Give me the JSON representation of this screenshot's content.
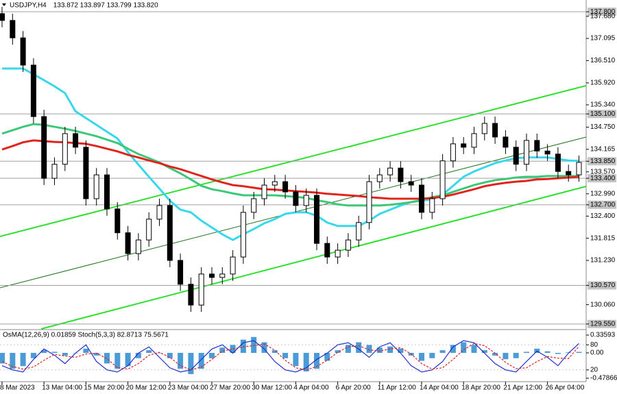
{
  "chart_data": [
    {
      "type": "candlestick",
      "title": "USDJPY,H4",
      "ohlc_text": "133.872 133.897 133.799 133.820",
      "categories": [
        "8 Mar 2023",
        null,
        null,
        null,
        "13 Mar 04:00",
        null,
        null,
        null,
        "15 Mar 20:00",
        null,
        null,
        null,
        "20 Mar 12:00",
        null,
        null,
        null,
        "23 Mar 04:00",
        null,
        null,
        null,
        "27 Mar 20:00",
        null,
        null,
        null,
        "30 Mar 12:00",
        null,
        null,
        null,
        "4 Apr 04:00",
        null,
        null,
        null,
        "6 Apr 20:00",
        null,
        null,
        null,
        "11 Apr 12:00",
        null,
        null,
        null,
        "14 Apr 04:00",
        null,
        null,
        null,
        "18 Apr 20:00",
        null,
        null,
        null,
        "21 Apr 12:00",
        null,
        null,
        null,
        "26 Apr 04:00",
        null,
        null,
        null
      ],
      "open": [
        137.75,
        137.57,
        137.11,
        136.39,
        135.03,
        133.4,
        133.77,
        134.58,
        134.22,
        132.86,
        133.49,
        132.59,
        131.96,
        131.41,
        131.77,
        132.32,
        132.68,
        131.23,
        130.6,
        130.05,
        130.87,
        130.78,
        130.87,
        131.32,
        132.5,
        132.86,
        133.22,
        133.31,
        133.04,
        132.68,
        132.95,
        131.68,
        131.32,
        131.5,
        131.77,
        132.23,
        133.31,
        133.49,
        133.67,
        133.31,
        133.22,
        132.5,
        132.86,
        133.86,
        134.31,
        134.22,
        134.58,
        134.85,
        134.49,
        134.22,
        133.77,
        134.4,
        134.12,
        134.04,
        133.58,
        133.49
      ],
      "high": [
        137.93,
        137.75,
        137.29,
        136.57,
        135.21,
        133.95,
        134.76,
        134.76,
        134.4,
        133.67,
        133.67,
        132.77,
        132.14,
        131.95,
        132.5,
        132.86,
        132.86,
        131.41,
        130.78,
        131.05,
        131.05,
        131.05,
        131.5,
        132.68,
        133.04,
        133.4,
        133.49,
        133.49,
        133.22,
        133.13,
        133.13,
        131.86,
        131.68,
        131.95,
        132.41,
        133.49,
        133.67,
        133.85,
        133.85,
        133.49,
        133.4,
        133.04,
        134.04,
        134.49,
        134.49,
        134.76,
        135.03,
        135.03,
        134.67,
        134.4,
        134.58,
        134.58,
        134.3,
        134.22,
        133.76,
        134.0
      ],
      "low": [
        137.39,
        136.93,
        136.21,
        134.85,
        133.22,
        133.22,
        133.59,
        134.04,
        132.68,
        132.68,
        132.41,
        131.78,
        131.23,
        131.23,
        131.59,
        132.14,
        131.05,
        130.42,
        129.87,
        129.87,
        130.6,
        130.6,
        130.69,
        131.14,
        132.32,
        132.68,
        133.04,
        132.86,
        132.5,
        132.5,
        131.5,
        131.14,
        131.14,
        131.32,
        131.59,
        132.05,
        133.13,
        133.31,
        133.13,
        133.04,
        132.32,
        132.32,
        132.68,
        133.68,
        134.04,
        134.04,
        134.4,
        134.31,
        134.04,
        133.59,
        133.59,
        133.94,
        133.86,
        133.4,
        133.31,
        133.31
      ],
      "close": [
        137.57,
        137.11,
        136.39,
        135.03,
        133.4,
        133.77,
        134.58,
        134.22,
        132.86,
        133.49,
        132.59,
        131.96,
        131.41,
        131.77,
        132.32,
        132.68,
        131.23,
        130.6,
        130.05,
        130.87,
        130.78,
        130.87,
        131.32,
        132.5,
        132.86,
        133.22,
        133.31,
        133.04,
        132.68,
        132.95,
        131.68,
        131.32,
        131.5,
        131.77,
        132.23,
        133.31,
        133.49,
        133.67,
        133.31,
        133.22,
        132.5,
        132.86,
        133.86,
        134.31,
        134.22,
        134.58,
        134.85,
        134.49,
        134.22,
        133.77,
        134.4,
        134.12,
        134.04,
        133.58,
        133.49,
        133.82
      ],
      "bull_color": "#ffffff",
      "bear_color": "#000000",
      "overlays": [
        {
          "color": "#38d8ec",
          "values": [
            136.3,
            136.3,
            136.3,
            136.15,
            135.99,
            135.83,
            135.65,
            135.17,
            134.99,
            134.81,
            134.63,
            134.45,
            134.09,
            133.76,
            133.44,
            133.13,
            132.81,
            132.57,
            132.5,
            132.28,
            132.1,
            131.92,
            131.77,
            131.92,
            132.06,
            132.21,
            132.32,
            132.46,
            132.5,
            132.5,
            132.41,
            132.23,
            132.14,
            132.14,
            132.14,
            132.28,
            132.46,
            132.57,
            132.68,
            132.77,
            132.81,
            132.84,
            132.97,
            133.2,
            133.44,
            133.58,
            133.69,
            133.8,
            133.87,
            133.93,
            133.95,
            133.95,
            133.95,
            133.91,
            133.87,
            133.86
          ]
        },
        {
          "color": "#3cc878",
          "values": [
            134.58,
            134.67,
            134.76,
            134.83,
            134.81,
            134.76,
            134.71,
            134.65,
            134.58,
            134.51,
            134.42,
            134.33,
            134.18,
            134.04,
            133.93,
            133.82,
            133.67,
            133.53,
            133.37,
            133.2,
            133.11,
            133.06,
            133.0,
            132.95,
            132.95,
            132.95,
            132.95,
            132.93,
            132.91,
            132.88,
            132.82,
            132.77,
            132.71,
            132.68,
            132.68,
            132.68,
            132.68,
            132.7,
            132.73,
            132.77,
            132.82,
            132.9,
            132.95,
            133.04,
            133.13,
            133.22,
            133.29,
            133.35,
            133.38,
            133.42,
            133.44,
            133.44,
            133.46,
            133.46,
            133.46,
            133.46
          ]
        },
        {
          "color": "#e0241c",
          "values": [
            134.16,
            134.25,
            134.35,
            134.4,
            134.38,
            134.36,
            134.35,
            134.33,
            134.31,
            134.25,
            134.18,
            134.11,
            134.02,
            133.95,
            133.87,
            133.8,
            133.71,
            133.64,
            133.55,
            133.46,
            133.37,
            133.29,
            133.22,
            133.19,
            133.15,
            133.11,
            133.1,
            133.08,
            133.06,
            133.04,
            133.02,
            132.99,
            132.97,
            132.95,
            132.93,
            132.9,
            132.88,
            132.86,
            132.86,
            132.86,
            132.86,
            132.88,
            132.91,
            132.97,
            133.04,
            133.11,
            133.19,
            133.24,
            133.28,
            133.31,
            133.33,
            133.37,
            133.38,
            133.4,
            133.42,
            133.44
          ]
        }
      ],
      "ylim": [
        129.42,
        138.11
      ],
      "yticks": [
        {
          "value": 137.8,
          "label": "137.800",
          "level": true
        },
        {
          "value": 137.68,
          "label": "137.680"
        },
        {
          "value": 137.095,
          "label": "137.095"
        },
        {
          "value": 136.51,
          "label": "136.510"
        },
        {
          "value": 135.92,
          "label": "135.920"
        },
        {
          "value": 135.34,
          "label": "135.340"
        },
        {
          "value": 135.1,
          "label": "135.100",
          "level": true
        },
        {
          "value": 134.75,
          "label": "134.750"
        },
        {
          "value": 134.165,
          "label": "134.165"
        },
        {
          "value": 133.85,
          "label": "133.850",
          "level": true
        },
        {
          "value": 133.57,
          "label": "133.570"
        },
        {
          "value": 133.4,
          "label": "133.400",
          "level": true
        },
        {
          "value": 132.99,
          "label": "132.990"
        },
        {
          "value": 132.7,
          "label": "132.700",
          "level": true
        },
        {
          "value": 132.4,
          "label": "132.400"
        },
        {
          "value": 131.815,
          "label": "131.815"
        },
        {
          "value": 131.23,
          "label": "131.230"
        },
        {
          "value": 130.57,
          "label": "130.570",
          "level": true
        },
        {
          "value": 130.06,
          "label": "130.060"
        },
        {
          "value": 129.55,
          "label": "129.550",
          "level": true
        }
      ]
    },
    {
      "type": "oscillator",
      "title": "OsMA(12,26,9) 0.01859  Stoch(5,3,3) 82.8713 75.5671",
      "osma": {
        "color": "#4b9bd6",
        "values": [
          -0.2,
          -0.3,
          -0.25,
          -0.1,
          0.05,
          0.02,
          -0.05,
          0.0,
          0.08,
          -0.05,
          -0.2,
          -0.3,
          -0.25,
          -0.1,
          0.05,
          0.0,
          -0.1,
          -0.3,
          -0.4,
          -0.3,
          -0.1,
          0.1,
          0.15,
          0.25,
          0.3,
          0.2,
          0.05,
          -0.1,
          -0.25,
          -0.35,
          -0.3,
          -0.15,
          0.05,
          0.15,
          0.2,
          0.15,
          0.1,
          0.12,
          0.08,
          -0.05,
          -0.15,
          -0.1,
          0.05,
          0.15,
          0.2,
          0.15,
          0.05,
          -0.05,
          -0.12,
          -0.1,
          0.02,
          0.08,
          0.03,
          -0.02,
          0.01,
          0.019
        ],
        "ylim": [
          -0.47866,
          0.33593
        ],
        "yticks": [
          0.33593,
          {
            "value": 0,
            "label": "0.00"
          },
          -0.47866
        ]
      },
      "stoch": {
        "ylim": [
          0,
          100
        ],
        "yticks": [
          80,
          20
        ],
        "series": [
          {
            "color": "#1f2fc8",
            "dash": false,
            "values": [
              30,
              20,
              15,
              45,
              70,
              55,
              35,
              60,
              80,
              40,
              20,
              15,
              30,
              60,
              75,
              50,
              25,
              15,
              20,
              45,
              70,
              80,
              60,
              85,
              90,
              70,
              40,
              20,
              15,
              25,
              45,
              60,
              80,
              85,
              70,
              50,
              75,
              85,
              60,
              30,
              15,
              20,
              40,
              75,
              90,
              85,
              60,
              35,
              20,
              15,
              40,
              65,
              50,
              30,
              60,
              83
            ]
          },
          {
            "color": "#e02020",
            "dash": true,
            "values": [
              40,
              28,
              22,
              27,
              43,
              57,
              53,
              50,
              58,
              60,
              47,
              25,
              22,
              35,
              55,
              62,
              50,
              30,
              20,
              27,
              45,
              65,
              70,
              75,
              78,
              82,
              67,
              43,
              25,
              20,
              28,
              43,
              62,
              75,
              78,
              68,
              65,
              70,
              73,
              58,
              35,
              22,
              25,
              45,
              68,
              83,
              78,
              60,
              38,
              23,
              25,
              40,
              52,
              48,
              47,
              76
            ]
          }
        ]
      }
    }
  ]
}
